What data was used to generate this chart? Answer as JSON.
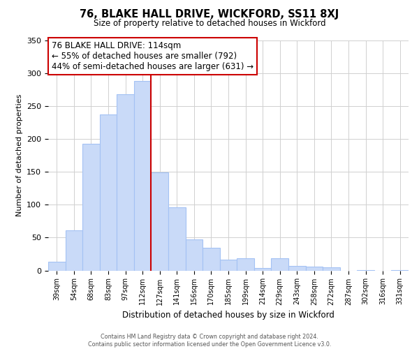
{
  "title": "76, BLAKE HALL DRIVE, WICKFORD, SS11 8XJ",
  "subtitle": "Size of property relative to detached houses in Wickford",
  "xlabel": "Distribution of detached houses by size in Wickford",
  "ylabel": "Number of detached properties",
  "bar_labels": [
    "39sqm",
    "54sqm",
    "68sqm",
    "83sqm",
    "97sqm",
    "112sqm",
    "127sqm",
    "141sqm",
    "156sqm",
    "170sqm",
    "185sqm",
    "199sqm",
    "214sqm",
    "229sqm",
    "243sqm",
    "258sqm",
    "272sqm",
    "287sqm",
    "302sqm",
    "316sqm",
    "331sqm"
  ],
  "bar_values": [
    13,
    61,
    192,
    237,
    268,
    288,
    149,
    96,
    47,
    34,
    16,
    19,
    4,
    19,
    7,
    6,
    5,
    0,
    1,
    0,
    1
  ],
  "bar_color": "#c9daf8",
  "bar_edge_color": "#a4c2f4",
  "vline_x_idx": 5,
  "vline_color": "#cc0000",
  "annotation_title": "76 BLAKE HALL DRIVE: 114sqm",
  "annotation_line1": "← 55% of detached houses are smaller (792)",
  "annotation_line2": "44% of semi-detached houses are larger (631) →",
  "annotation_box_color": "#ffffff",
  "annotation_box_edge": "#cc0000",
  "footer_line1": "Contains HM Land Registry data © Crown copyright and database right 2024.",
  "footer_line2": "Contains public sector information licensed under the Open Government Licence v3.0.",
  "ylim": [
    0,
    350
  ],
  "background_color": "#ffffff",
  "grid_color": "#d0d0d0"
}
